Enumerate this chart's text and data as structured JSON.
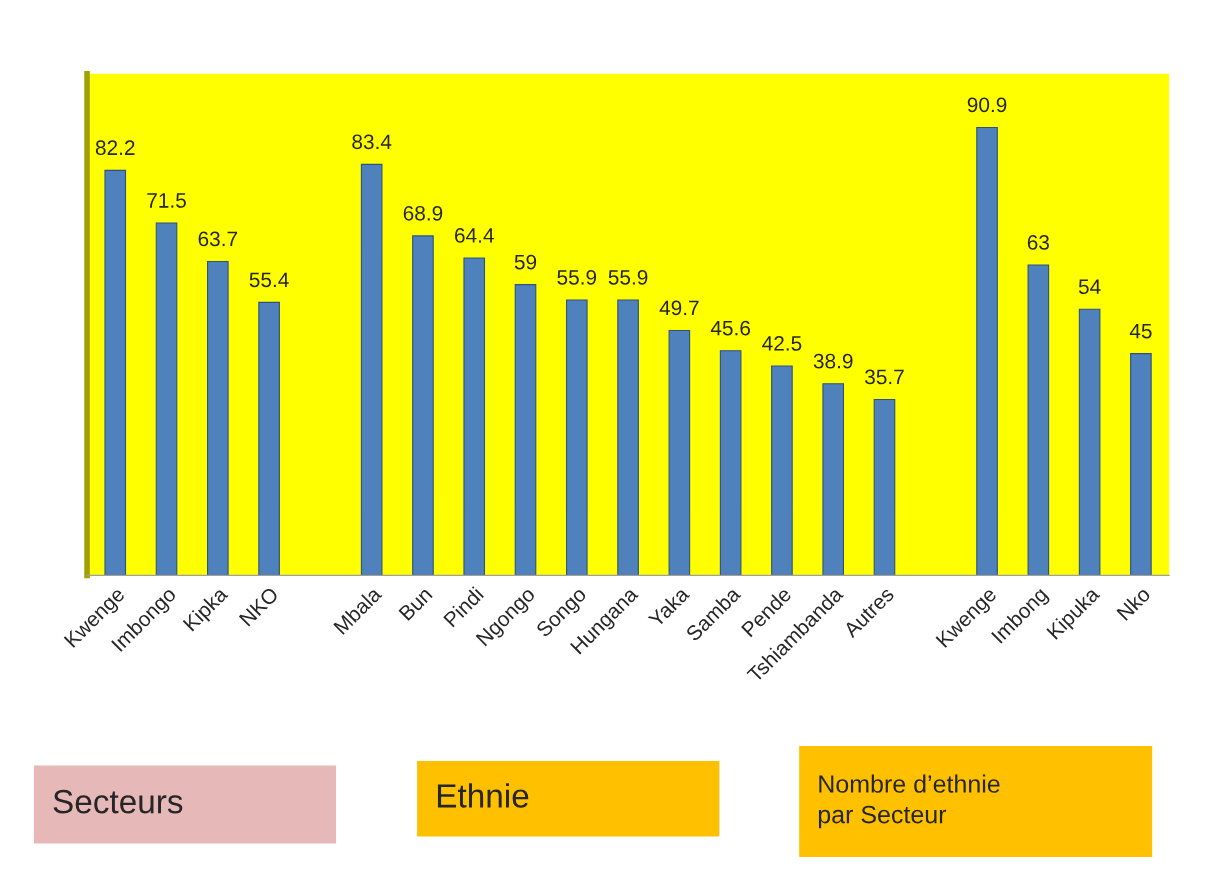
{
  "chart_data": {
    "type": "bar",
    "categories": [
      "Kwenge",
      "Imbongo",
      "Kipka",
      "NKO",
      null,
      "Mbala",
      "Bun",
      "Pindi",
      "Ngongo",
      "Songo",
      "Hungana",
      "Yaka",
      "Samba",
      "Pende",
      "Tshiambanda",
      "Autres",
      null,
      "Kwenge",
      "Imbong",
      "Kipuka",
      "Nko"
    ],
    "values": [
      82.2,
      71.5,
      63.7,
      55.4,
      null,
      83.4,
      68.9,
      64.4,
      59,
      55.9,
      55.9,
      49.7,
      45.6,
      42.5,
      38.9,
      35.7,
      null,
      90.9,
      63,
      54,
      45
    ],
    "color": "#4f81bd",
    "data_labels": true,
    "tick_labels": "x",
    "grid": false,
    "annotations": [
      "Secteurs",
      "Ethnie",
      "Nombre d’ethnie\npar Secteur"
    ]
  }
}
